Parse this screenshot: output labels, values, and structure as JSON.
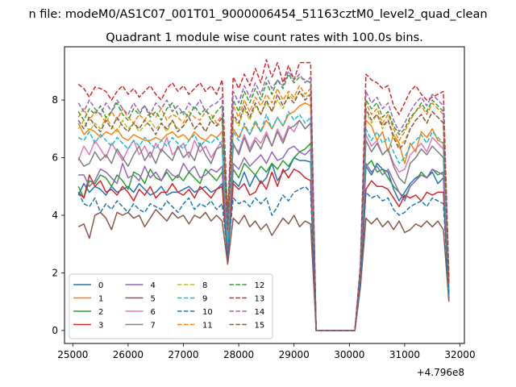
{
  "suptitle": "n file: modeM0/AS1C07_001T01_9000006454_51163cztM0_level2_quad_clean",
  "chart_data": {
    "type": "line",
    "title": "Quadrant 1 module wise count rates with 100.0s bins.",
    "xlabel": "",
    "ylabel": "",
    "x_offset_label": "+4.796e8",
    "xlim": [
      24850,
      32080
    ],
    "ylim": [
      -0.45,
      9.85
    ],
    "x_ticks": [
      25000,
      26000,
      27000,
      28000,
      29000,
      30000,
      31000,
      32000
    ],
    "x_tick_labels": [
      "25000",
      "26000",
      "27000",
      "28000",
      "29000",
      "30000",
      "31000",
      "32000"
    ],
    "y_ticks": [
      0,
      2,
      4,
      6,
      8
    ],
    "y_tick_labels": [
      "0",
      "2",
      "4",
      "6",
      "8"
    ],
    "grid": false,
    "legend_position": "lower-left",
    "legend_columns": 4,
    "x_start": 25100,
    "x_step": 100,
    "series": [
      {
        "name": "0",
        "color": "#1f77b4",
        "dash": "solid",
        "values": [
          4.7,
          5.1,
          4.8,
          5.0,
          4.9,
          4.7,
          5.0,
          4.8,
          4.9,
          5.0,
          4.8,
          5.1,
          4.9,
          4.7,
          4.8,
          5.0,
          4.7,
          4.8,
          4.8,
          4.9,
          5.0,
          4.8,
          4.9,
          5.0,
          4.8,
          4.9,
          5.1,
          2.4,
          5.2,
          5.0,
          5.5,
          5.0,
          5.4,
          5.1,
          5.3,
          5.8,
          5.2,
          5.5,
          5.6,
          6.0,
          5.9,
          5.9,
          5.85,
          0,
          0,
          0,
          0,
          0,
          0,
          0,
          0,
          1.7,
          5.7,
          5.4,
          5.8,
          5.6,
          5.5,
          4.9,
          4.5,
          4.8,
          5.1,
          5.3,
          5.4,
          5.3,
          5.5,
          5.1,
          5.3,
          1.0
        ]
      },
      {
        "name": "1",
        "color": "#ff7f0e",
        "dash": "solid",
        "values": [
          7.2,
          6.8,
          7.0,
          6.9,
          6.7,
          6.9,
          6.8,
          7.0,
          6.7,
          6.6,
          6.8,
          6.7,
          6.6,
          6.6,
          6.7,
          6.6,
          6.8,
          6.9,
          6.7,
          6.8,
          6.6,
          6.9,
          6.7,
          6.6,
          6.8,
          6.7,
          6.9,
          3.3,
          7.0,
          6.7,
          7.1,
          6.8,
          7.2,
          6.9,
          7.3,
          7.0,
          7.4,
          7.1,
          7.5,
          7.6,
          7.8,
          7.9,
          7.8,
          0,
          0,
          0,
          0,
          0,
          0,
          0,
          0,
          2.0,
          7.3,
          7.1,
          6.6,
          6.9,
          6.2,
          6.8,
          6.5,
          5.8,
          6.5,
          6.2,
          6.9,
          6.7,
          7.0,
          6.6,
          6.5,
          1.5
        ]
      },
      {
        "name": "2",
        "color": "#2ca02c",
        "dash": "solid",
        "values": [
          5.0,
          4.6,
          5.2,
          5.1,
          5.4,
          5.3,
          5.0,
          5.4,
          5.2,
          4.9,
          5.5,
          5.4,
          5.1,
          5.6,
          5.3,
          5.2,
          5.5,
          5.2,
          5.4,
          5.2,
          5.5,
          5.3,
          5.1,
          5.6,
          5.4,
          5.2,
          5.5,
          2.7,
          5.6,
          5.3,
          5.8,
          5.6,
          5.4,
          5.7,
          5.5,
          5.8,
          5.6,
          5.9,
          5.7,
          6.0,
          6.2,
          6.3,
          6.5,
          0,
          0,
          0,
          0,
          0,
          0,
          0,
          0,
          1.8,
          5.7,
          5.9,
          5.5,
          5.6,
          5.3,
          5.0,
          4.8,
          4.6,
          5.0,
          5.2,
          5.5,
          5.3,
          5.6,
          5.4,
          5.5,
          1.2
        ]
      },
      {
        "name": "3",
        "color": "#d62728",
        "dash": "solid",
        "values": [
          4.8,
          4.6,
          5.4,
          5.0,
          5.2,
          4.8,
          4.9,
          4.7,
          5.0,
          4.8,
          4.5,
          4.9,
          4.7,
          5.0,
          4.6,
          4.8,
          4.8,
          5.1,
          4.8,
          4.7,
          4.9,
          4.6,
          5.0,
          4.8,
          4.6,
          4.9,
          5.0,
          2.5,
          5.1,
          4.9,
          5.1,
          4.7,
          4.8,
          5.2,
          4.9,
          5.5,
          5.0,
          5.6,
          5.3,
          5.6,
          5.5,
          5.3,
          5.2,
          0,
          0,
          0,
          0,
          0,
          0,
          0,
          0,
          1.6,
          4.9,
          5.2,
          5.0,
          5.0,
          4.9,
          4.6,
          4.3,
          4.7,
          4.6,
          4.7,
          4.5,
          4.8,
          4.7,
          4.8,
          4.8,
          1.1
        ]
      },
      {
        "name": "4",
        "color": "#9467bd",
        "dash": "solid",
        "values": [
          5.4,
          5.4,
          5.0,
          5.2,
          5.6,
          5.5,
          5.3,
          5.1,
          5.8,
          5.3,
          5.4,
          5.2,
          5.7,
          5.3,
          5.5,
          5.2,
          5.6,
          5.4,
          5.3,
          5.8,
          5.5,
          5.7,
          5.3,
          5.4,
          5.6,
          5.5,
          5.7,
          2.8,
          5.8,
          5.6,
          6.0,
          5.7,
          5.9,
          6.1,
          5.8,
          6.2,
          5.9,
          6.0,
          6.3,
          6.4,
          6.2,
          6.1,
          6.3,
          0,
          0,
          0,
          0,
          0,
          0,
          0,
          0,
          1.9,
          5.8,
          5.5,
          5.7,
          5.4,
          5.6,
          5.2,
          4.8,
          4.5,
          5.0,
          5.2,
          5.4,
          5.3,
          5.6,
          5.5,
          5.4,
          1.3
        ]
      },
      {
        "name": "5",
        "color": "#8c564b",
        "dash": "solid",
        "values": [
          3.6,
          3.7,
          3.2,
          4.0,
          4.1,
          3.9,
          3.5,
          4.1,
          4.0,
          4.1,
          3.9,
          4.0,
          3.6,
          3.9,
          4.2,
          4.0,
          3.8,
          4.1,
          3.9,
          4.0,
          3.7,
          4.0,
          3.9,
          4.1,
          3.8,
          4.0,
          3.8,
          2.3,
          3.9,
          3.7,
          4.0,
          3.6,
          3.8,
          3.5,
          3.7,
          3.3,
          3.6,
          3.9,
          3.7,
          4.0,
          3.6,
          3.8,
          3.7,
          0,
          0,
          0,
          0,
          0,
          0,
          0,
          0,
          1.5,
          3.9,
          3.7,
          3.9,
          3.6,
          3.8,
          3.5,
          3.8,
          3.4,
          3.5,
          3.7,
          3.6,
          3.8,
          3.6,
          3.8,
          3.5,
          1.0
        ]
      },
      {
        "name": "6",
        "color": "#e377c2",
        "dash": "solid",
        "values": [
          5.9,
          6.4,
          6.1,
          6.6,
          6.3,
          6.0,
          6.5,
          6.2,
          5.9,
          6.3,
          6.6,
          6.1,
          6.4,
          6.0,
          6.5,
          6.2,
          6.7,
          6.1,
          6.3,
          6.5,
          6.0,
          6.6,
          6.2,
          6.4,
          6.0,
          6.3,
          6.6,
          2.9,
          6.4,
          6.2,
          6.8,
          6.3,
          6.7,
          6.5,
          6.9,
          6.4,
          7.0,
          6.6,
          7.1,
          6.9,
          7.3,
          7.0,
          7.2,
          0,
          0,
          0,
          0,
          0,
          0,
          0,
          0,
          1.9,
          6.8,
          6.4,
          6.6,
          6.1,
          6.3,
          5.8,
          5.5,
          5.6,
          6.1,
          6.3,
          6.5,
          6.2,
          6.7,
          6.5,
          6.3,
          1.4
        ]
      },
      {
        "name": "7",
        "color": "#7f7f7f",
        "dash": "solid",
        "values": [
          6.0,
          5.7,
          5.8,
          6.2,
          5.9,
          6.1,
          5.8,
          6.3,
          6.0,
          5.7,
          6.1,
          6.4,
          5.9,
          6.2,
          5.8,
          6.3,
          6.1,
          5.9,
          6.4,
          6.0,
          6.2,
          5.9,
          6.5,
          6.1,
          5.8,
          6.3,
          6.4,
          2.6,
          6.5,
          6.1,
          6.7,
          6.2,
          6.6,
          6.3,
          6.8,
          6.4,
          6.9,
          6.5,
          7.0,
          7.1,
          7.3,
          7.0,
          7.2,
          0,
          0,
          0,
          0,
          0,
          0,
          0,
          0,
          1.8,
          6.6,
          6.2,
          6.5,
          6.1,
          6.3,
          5.7,
          5.3,
          5.1,
          5.8,
          6.0,
          6.3,
          6.1,
          6.4,
          6.2,
          6.0,
          1.2
        ]
      },
      {
        "name": "8",
        "color": "#bcbd22",
        "dash": "dashed",
        "values": [
          7.0,
          7.3,
          6.9,
          7.2,
          7.0,
          7.4,
          7.1,
          6.9,
          7.3,
          7.0,
          7.2,
          6.9,
          7.1,
          7.3,
          7.0,
          7.2,
          6.9,
          7.3,
          7.0,
          7.1,
          7.4,
          7.0,
          7.2,
          6.9,
          7.3,
          7.1,
          7.2,
          3.4,
          7.4,
          7.1,
          7.7,
          7.3,
          7.8,
          7.5,
          7.9,
          7.6,
          8.0,
          7.7,
          8.2,
          8.0,
          8.3,
          8.1,
          8.2,
          0,
          0,
          0,
          0,
          0,
          0,
          0,
          0,
          2.0,
          7.6,
          7.2,
          7.5,
          7.0,
          7.3,
          6.8,
          6.4,
          6.6,
          7.0,
          7.3,
          7.5,
          7.2,
          7.6,
          7.4,
          7.2,
          1.6
        ]
      },
      {
        "name": "9",
        "color": "#17becf",
        "dash": "dashed",
        "values": [
          6.7,
          6.6,
          6.9,
          6.5,
          6.8,
          6.6,
          6.4,
          6.7,
          6.5,
          6.3,
          6.6,
          6.4,
          6.7,
          6.5,
          6.3,
          6.6,
          6.4,
          6.7,
          6.5,
          6.3,
          6.6,
          6.8,
          6.4,
          6.6,
          6.5,
          6.7,
          6.4,
          3.1,
          6.9,
          6.6,
          7.2,
          6.8,
          7.3,
          6.9,
          7.5,
          7.0,
          7.4,
          7.1,
          7.6,
          7.3,
          7.5,
          7.2,
          7.4,
          0,
          0,
          0,
          0,
          0,
          0,
          0,
          0,
          1.9,
          7.0,
          6.6,
          6.9,
          6.5,
          6.7,
          6.2,
          5.8,
          6.0,
          6.4,
          6.6,
          6.8,
          6.5,
          6.9,
          6.7,
          6.5,
          1.4
        ]
      },
      {
        "name": "10",
        "color": "#1f77b4",
        "dash": "dashed",
        "values": [
          4.8,
          4.4,
          4.3,
          4.6,
          4.1,
          4.4,
          4.2,
          4.5,
          4.3,
          4.1,
          4.4,
          4.2,
          4.1,
          4.4,
          4.3,
          4.2,
          4.5,
          4.3,
          4.1,
          4.4,
          4.6,
          4.2,
          4.4,
          4.3,
          4.5,
          4.2,
          4.4,
          2.6,
          4.6,
          4.4,
          4.5,
          4.3,
          4.6,
          4.4,
          4.6,
          4.0,
          4.3,
          4.7,
          4.5,
          4.8,
          4.9,
          5.0,
          4.8,
          0,
          0,
          0,
          0,
          0,
          0,
          0,
          0,
          1.7,
          4.8,
          4.6,
          4.7,
          4.5,
          4.6,
          4.2,
          4.0,
          4.1,
          4.3,
          4.4,
          4.5,
          4.3,
          4.6,
          4.5,
          4.4,
          1.2
        ]
      },
      {
        "name": "11",
        "color": "#ff7f0e",
        "dash": "dashed",
        "values": [
          7.4,
          7.7,
          7.3,
          7.6,
          7.5,
          7.2,
          7.6,
          7.3,
          7.7,
          7.4,
          7.2,
          7.5,
          7.3,
          7.6,
          7.4,
          7.7,
          7.3,
          7.5,
          7.4,
          7.2,
          7.6,
          7.4,
          7.3,
          7.6,
          7.5,
          7.2,
          7.5,
          3.6,
          7.8,
          7.4,
          8.0,
          7.6,
          8.1,
          7.8,
          8.2,
          7.9,
          8.4,
          8.0,
          8.3,
          8.1,
          8.5,
          8.2,
          8.4,
          0,
          0,
          0,
          0,
          0,
          0,
          0,
          0,
          2.1,
          7.9,
          7.5,
          7.7,
          7.2,
          7.5,
          7.0,
          6.6,
          6.9,
          7.3,
          7.6,
          7.8,
          7.5,
          7.9,
          7.7,
          7.5,
          1.7
        ]
      },
      {
        "name": "12",
        "color": "#2ca02c",
        "dash": "dashed",
        "values": [
          7.6,
          7.3,
          7.7,
          7.5,
          7.8,
          7.4,
          7.6,
          7.9,
          7.5,
          7.3,
          7.7,
          7.5,
          7.8,
          7.4,
          7.6,
          7.3,
          7.7,
          7.9,
          7.5,
          7.6,
          7.4,
          7.8,
          7.5,
          7.7,
          7.3,
          7.6,
          7.8,
          3.9,
          8.0,
          7.6,
          8.3,
          7.9,
          8.4,
          8.0,
          8.6,
          8.2,
          8.7,
          8.4,
          8.9,
          8.6,
          8.8,
          8.7,
          8.6,
          0,
          0,
          0,
          0,
          0,
          0,
          0,
          0,
          2.2,
          8.0,
          7.7,
          7.9,
          7.4,
          7.6,
          7.1,
          6.8,
          7.0,
          7.4,
          7.6,
          7.9,
          7.6,
          8.0,
          7.8,
          7.6,
          1.8
        ]
      },
      {
        "name": "13",
        "color": "#d62728",
        "dash": "dashed",
        "values": [
          8.55,
          8.4,
          8.1,
          8.45,
          8.4,
          8.3,
          8.0,
          8.3,
          8.5,
          8.2,
          8.4,
          8.1,
          8.3,
          8.5,
          8.2,
          8.0,
          8.4,
          8.6,
          8.3,
          8.5,
          8.2,
          8.4,
          8.6,
          8.3,
          8.5,
          8.2,
          8.7,
          4.0,
          8.8,
          8.4,
          8.9,
          8.5,
          9.1,
          8.6,
          9.4,
          8.8,
          9.3,
          8.6,
          9.2,
          8.7,
          9.3,
          9.3,
          9.3,
          0,
          0,
          0,
          0,
          0,
          0,
          0,
          0,
          2.3,
          8.9,
          8.7,
          8.6,
          8.4,
          8.5,
          7.8,
          7.5,
          7.9,
          8.3,
          8.5,
          8.2,
          8.0,
          8.1,
          8.2,
          8.3,
          1.9
        ]
      },
      {
        "name": "14",
        "color": "#9467bd",
        "dash": "dashed",
        "values": [
          7.9,
          7.6,
          8.0,
          7.7,
          7.5,
          7.9,
          7.6,
          8.0,
          7.7,
          7.5,
          7.9,
          7.6,
          7.8,
          7.5,
          7.9,
          7.7,
          8.0,
          7.6,
          7.8,
          7.5,
          7.9,
          7.7,
          8.0,
          7.6,
          7.8,
          7.9,
          8.1,
          3.7,
          8.3,
          7.9,
          8.5,
          8.1,
          8.6,
          8.2,
          8.8,
          8.4,
          8.7,
          8.5,
          9.0,
          8.7,
          8.9,
          8.6,
          8.8,
          0,
          0,
          0,
          0,
          0,
          0,
          0,
          0,
          2.2,
          8.3,
          7.9,
          8.1,
          7.7,
          7.9,
          7.3,
          6.9,
          7.2,
          7.6,
          7.9,
          8.1,
          7.8,
          8.2,
          8.0,
          7.8,
          1.8
        ]
      },
      {
        "name": "15",
        "color": "#8c564b",
        "dash": "dashed",
        "values": [
          7.3,
          7.0,
          7.4,
          7.1,
          6.9,
          7.3,
          7.0,
          7.4,
          7.1,
          6.9,
          7.2,
          7.0,
          7.3,
          7.1,
          6.8,
          7.2,
          7.0,
          7.3,
          6.9,
          7.1,
          7.4,
          7.0,
          7.2,
          6.9,
          7.3,
          7.1,
          7.4,
          3.5,
          7.5,
          7.2,
          7.8,
          7.4,
          7.9,
          7.5,
          8.0,
          7.6,
          8.2,
          7.8,
          8.1,
          7.9,
          8.3,
          8.0,
          8.2,
          0,
          0,
          0,
          0,
          0,
          0,
          0,
          0,
          2.1,
          7.7,
          7.3,
          7.5,
          7.1,
          7.3,
          6.7,
          6.3,
          6.5,
          7.0,
          7.3,
          7.5,
          7.2,
          7.6,
          7.4,
          7.2,
          1.6
        ]
      }
    ]
  }
}
